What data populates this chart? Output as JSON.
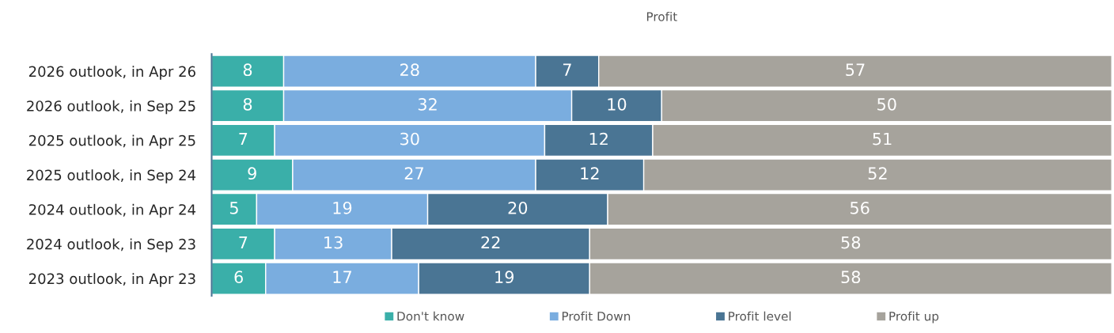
{
  "chart_data": {
    "type": "bar",
    "orientation": "horizontal",
    "stacked": true,
    "title": "Profit",
    "categories": [
      "2026 outlook, in Apr 26",
      "2026 outlook, in Sep 25",
      "2025 outlook, in Apr 25",
      "2025 outlook, in Sep 24",
      "2024 outlook, in Apr 24",
      "2024 outlook, in Sep 23",
      "2023 outlook, in Apr 23"
    ],
    "series": [
      {
        "name": "Don't know",
        "color": "#3aafa9",
        "values": [
          8,
          8,
          7,
          9,
          5,
          7,
          6
        ]
      },
      {
        "name": "Profit Down",
        "color": "#7aaddf",
        "values": [
          28,
          32,
          30,
          27,
          19,
          13,
          17
        ]
      },
      {
        "name": "Profit level",
        "color": "#4a7594",
        "values": [
          7,
          10,
          12,
          12,
          20,
          22,
          19
        ]
      },
      {
        "name": "Profit up",
        "color": "#a6a39c",
        "values": [
          57,
          50,
          51,
          52,
          56,
          58,
          58
        ]
      }
    ],
    "xlim": [
      0,
      100
    ],
    "tick_labels": "y",
    "data_labels": true,
    "legend": "bottom"
  }
}
